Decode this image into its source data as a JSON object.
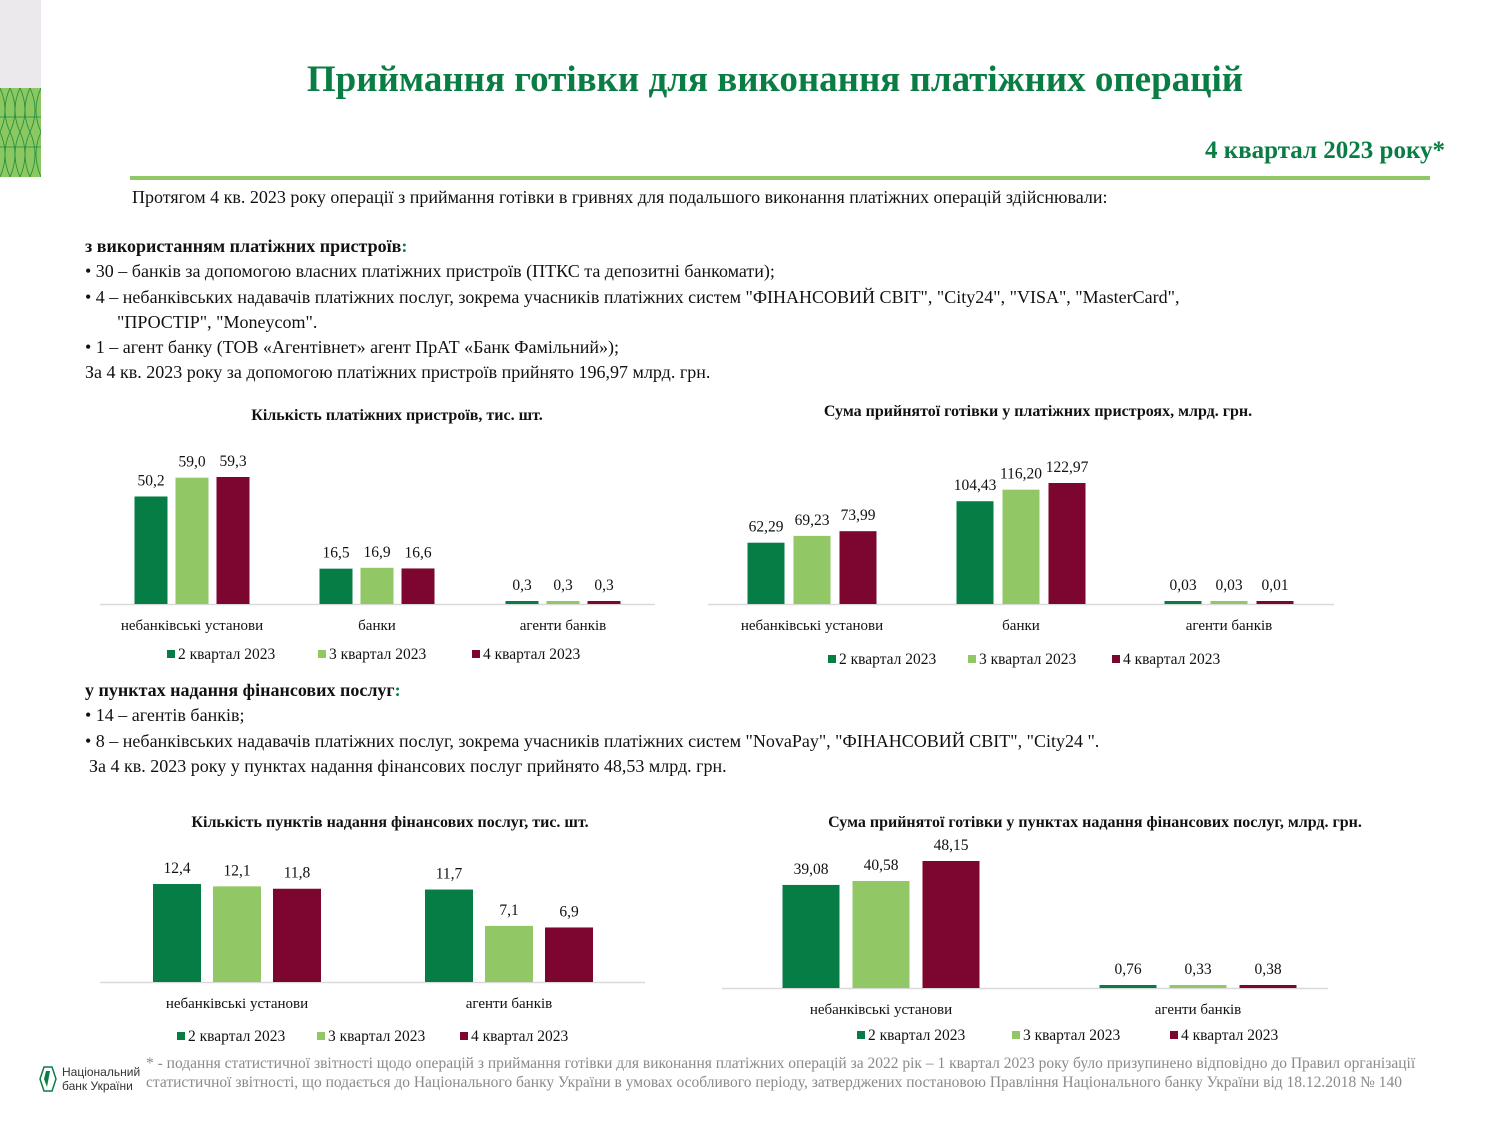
{
  "header": {
    "title": "Приймання готівки для виконання платіжних операцій",
    "subtitle": "4 квартал 2023 року*"
  },
  "intro": "Протягом 4 кв. 2023 року операції з приймання готівки в гривнях для подальшого виконання платіжних операцій здійснювали:",
  "devices_section": {
    "heading": "з використанням платіжних пристроїв",
    "heading_colon": ":",
    "items": [
      "• 30 – банків за допомогою власних платіжних пристроїв (ПТКС та депозитні банкомати);",
      "• 4 – небанківських надавачів  платіжних послуг, зокрема учасників платіжних систем \"ФІНАНСОВИЙ СВІТ\", \"City24\", \"VISA\", \"MasterCard\",",
      "\"ПРОСТІР\", \"Moneycom\".",
      "• 1 – агент банку (ТОВ «Агентівнет» агент  ПрАТ «Банк Фамільний»);"
    ],
    "summary": "За 4 кв. 2023 року за допомогою платіжних пристроїв прийнято 196,97 млрд. грн."
  },
  "points_section": {
    "heading": "у пунктах надання фінансових послуг",
    "heading_colon": ":",
    "items": [
      "• 14 – агентів банків;",
      "• 8 – небанківських надавачів платіжних послуг, зокрема учасників платіжних систем \"NovaPay\", \"ФІНАНСОВИЙ СВІТ\", \"City24 \"."
    ],
    "summary": "За 4 кв. 2023 року у пунктах надання фінансових послуг прийнято 48,53 млрд. грн."
  },
  "colors": {
    "q2": "#077d46",
    "q3": "#92c766",
    "q4": "#7d0630",
    "accent": "#0a7d44"
  },
  "chart_data": [
    {
      "type": "bar",
      "title": "Кількість платіжних пристроїв, тис. шт.",
      "categories": [
        "небанківські установи",
        "банки",
        "агенти банків"
      ],
      "series": [
        {
          "name": "2 квартал 2023",
          "values": [
            50.2,
            16.5,
            0.3
          ],
          "labels": [
            "50,2",
            "16,5",
            "0,3"
          ]
        },
        {
          "name": "3 квартал 2023",
          "values": [
            59.0,
            16.9,
            0.3
          ],
          "labels": [
            "59,0",
            "16,9",
            "0,3"
          ]
        },
        {
          "name": "4 квартал 2023",
          "values": [
            59.3,
            16.6,
            0.3
          ],
          "labels": [
            "59,3",
            "16,6",
            "0,3"
          ]
        }
      ],
      "legend": "bottom",
      "grid": false
    },
    {
      "type": "bar",
      "title": "Сума прийнятої готівки у платіжних пристроях, млрд. грн.",
      "categories": [
        "небанківські установи",
        "банки",
        "агенти банків"
      ],
      "series": [
        {
          "name": "2 квартал 2023",
          "values": [
            62.29,
            104.43,
            0.03
          ],
          "labels": [
            "62,29",
            "104,43",
            "0,03"
          ]
        },
        {
          "name": "3 квартал 2023",
          "values": [
            69.23,
            116.2,
            0.03
          ],
          "labels": [
            "69,23",
            "116,20",
            "0,03"
          ]
        },
        {
          "name": "4 квартал 2023",
          "values": [
            73.99,
            122.97,
            0.01
          ],
          "labels": [
            "73,99",
            "122,97",
            "0,01"
          ]
        }
      ],
      "legend": "bottom",
      "grid": false
    },
    {
      "type": "bar",
      "title": "Кількість пунктів надання фінансових послуг, тис. шт.",
      "categories": [
        "небанківські установи",
        "агенти банків"
      ],
      "series": [
        {
          "name": "2 квартал 2023",
          "values": [
            12.4,
            11.7
          ],
          "labels": [
            "12,4",
            "11,7"
          ]
        },
        {
          "name": "3 квартал 2023",
          "values": [
            12.1,
            7.1
          ],
          "labels": [
            "12,1",
            "7,1"
          ]
        },
        {
          "name": "4 квартал 2023",
          "values": [
            11.8,
            6.9
          ],
          "labels": [
            "11,8",
            "6,9"
          ]
        }
      ],
      "legend": "bottom",
      "grid": false
    },
    {
      "type": "bar",
      "title": "Сума прийнятої готівки у пунктах надання фінансових послуг, млрд. грн.",
      "categories": [
        "небанківські установи",
        "агенти банків"
      ],
      "series": [
        {
          "name": "2 квартал 2023",
          "values": [
            39.08,
            0.76
          ],
          "labels": [
            "39,08",
            "0,76"
          ]
        },
        {
          "name": "3 квартал 2023",
          "values": [
            40.58,
            0.33
          ],
          "labels": [
            "40,58",
            "0,33"
          ]
        },
        {
          "name": "4 квартал 2023",
          "values": [
            48.15,
            0.38
          ],
          "labels": [
            "48,15",
            "0,38"
          ]
        }
      ],
      "legend": "bottom",
      "grid": false
    }
  ],
  "footer": {
    "logo_text": [
      "Національний",
      "банк України"
    ],
    "footnote": "* - подання статистичної звітності щодо операцій з приймання готівки для виконання платіжних операцій за 2022 рік – 1 квартал 2023 року було призупинено відповідно до Правил організації статистичної звітності, що подається до Національного банку України в умовах особливого періоду, затверджених постановою Правління Національного банку України від 18.12.2018 № 140"
  }
}
